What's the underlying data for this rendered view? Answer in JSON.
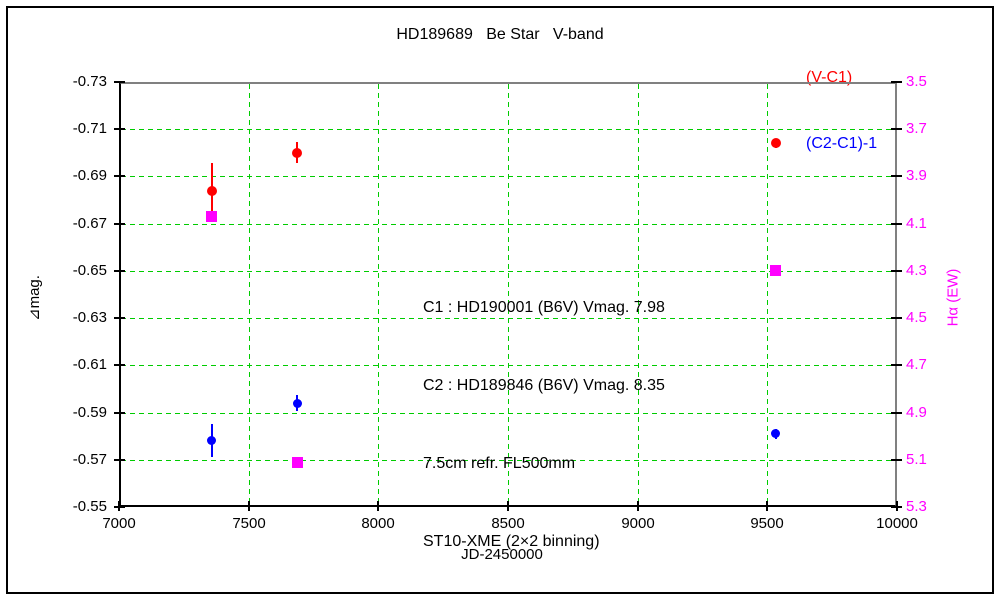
{
  "chart_data": {
    "type": "scatter",
    "title": "HD189689   Be Star   V-band",
    "xlabel": "JD-2450000",
    "ylabel_left": "⊿mag.",
    "ylabel_right": "Hα (EW)",
    "xlim": [
      7000,
      10000
    ],
    "ylim_left": [
      -0.73,
      -0.55
    ],
    "ylim_right": [
      3.5,
      5.3
    ],
    "x_ticks": [
      7000,
      7500,
      8000,
      8500,
      9000,
      9500,
      10000
    ],
    "y_ticks_left": [
      -0.73,
      -0.71,
      -0.69,
      -0.67,
      -0.65,
      -0.63,
      -0.61,
      -0.59,
      -0.57,
      -0.55
    ],
    "y_ticks_right": [
      3.5,
      3.7,
      3.9,
      4.1,
      4.3,
      4.5,
      4.7,
      4.9,
      5.1,
      5.3
    ],
    "grid": "dashed-green",
    "legend_position": "top-right",
    "legend": [
      {
        "label": "(V-C1)",
        "color": "#ff0000"
      },
      {
        "label": "(C2-C1)-1",
        "color": "#0000ff"
      }
    ],
    "series": [
      {
        "name": "(V-C1)",
        "axis": "left",
        "marker": "circle",
        "size": 10,
        "color": "#ff0000",
        "points": [
          {
            "x": 7357,
            "y": -0.684,
            "err": 0.0115
          },
          {
            "x": 7688,
            "y": -0.7,
            "err": 0.0045
          },
          {
            "x": 9532,
            "y": -0.704,
            "err": 0.002
          }
        ]
      },
      {
        "name": "(C2-C1)-1",
        "axis": "left",
        "marker": "circle",
        "size": 9,
        "color": "#0000ff",
        "points": [
          {
            "x": 7357,
            "y": -0.578,
            "err": 0.007
          },
          {
            "x": 7688,
            "y": -0.594,
            "err": 0.0035
          },
          {
            "x": 9532,
            "y": -0.581,
            "err": 0.002
          }
        ]
      },
      {
        "name": "Halpha EW",
        "axis": "right",
        "marker": "square",
        "size": 11,
        "color": "#ff00ff",
        "points": [
          {
            "x": 7357,
            "y": 4.07
          },
          {
            "x": 7688,
            "y": 5.11
          },
          {
            "x": 9532,
            "y": 4.3
          }
        ]
      }
    ],
    "annotation": [
      "C1 : HD190001 (B6V) Vmag. 7.98",
      "C2 : HD189846 (B6V) Vmag. 8.35",
      "7.5cm refr. FL500mm",
      "ST10-XME (2×2 binning)"
    ],
    "colors": {
      "grid": "#00cc00",
      "axis": "#000000",
      "frame_shadow": "#808080",
      "right_axis_text": "#ff00ff"
    }
  }
}
